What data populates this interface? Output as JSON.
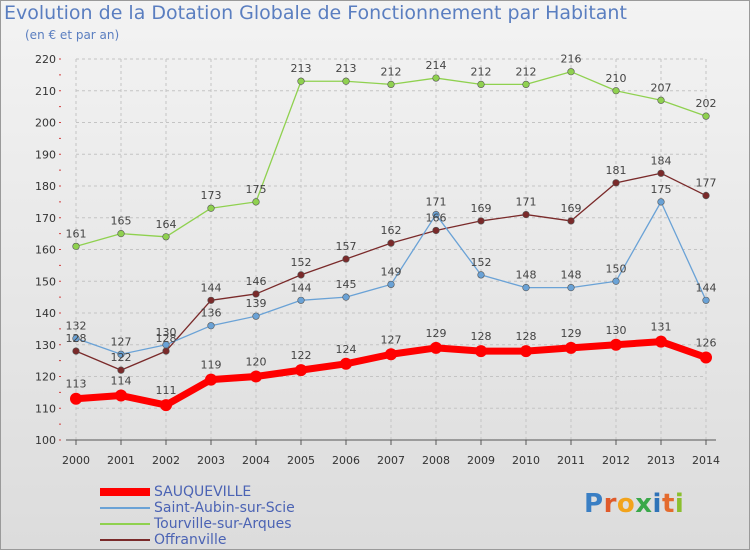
{
  "title": "Evolution de la Dotation Globale de Fonctionnement par Habitant",
  "subtitle": "(en € et par an)",
  "logo_text": "Proxiti",
  "chart_data": {
    "type": "line",
    "title": "Evolution de la Dotation Globale de Fonctionnement par Habitant",
    "subtitle": "(en € et par an)",
    "x": [
      "2000",
      "2001",
      "2002",
      "2003",
      "2004",
      "2005",
      "2006",
      "2007",
      "2008",
      "2009",
      "2010",
      "2011",
      "2012",
      "2013",
      "2014"
    ],
    "ylim": [
      100,
      220
    ],
    "yticks": [
      100,
      110,
      120,
      130,
      140,
      150,
      160,
      170,
      180,
      190,
      200,
      210,
      220
    ],
    "grid": true,
    "legend_position": "bottom-left",
    "series": [
      {
        "name": "SAUQUEVILLE",
        "color": "#ff0000",
        "values": [
          113,
          114,
          111,
          119,
          120,
          122,
          124,
          127,
          129,
          128,
          128,
          129,
          130,
          131,
          126
        ]
      },
      {
        "name": "Saint-Aubin-sur-Scie",
        "color": "#6aa2d6",
        "values": [
          132,
          127,
          130,
          136,
          139,
          144,
          145,
          149,
          171,
          152,
          148,
          148,
          150,
          175,
          144
        ]
      },
      {
        "name": "Tourville-sur-Arques",
        "color": "#8fd14f",
        "values": [
          161,
          165,
          164,
          173,
          175,
          213,
          213,
          212,
          214,
          212,
          212,
          216,
          210,
          207,
          202
        ]
      },
      {
        "name": "Offranville",
        "color": "#7a2a2a",
        "values": [
          128,
          122,
          128,
          144,
          146,
          152,
          157,
          162,
          166,
          169,
          171,
          169,
          181,
          184,
          177
        ]
      }
    ]
  }
}
